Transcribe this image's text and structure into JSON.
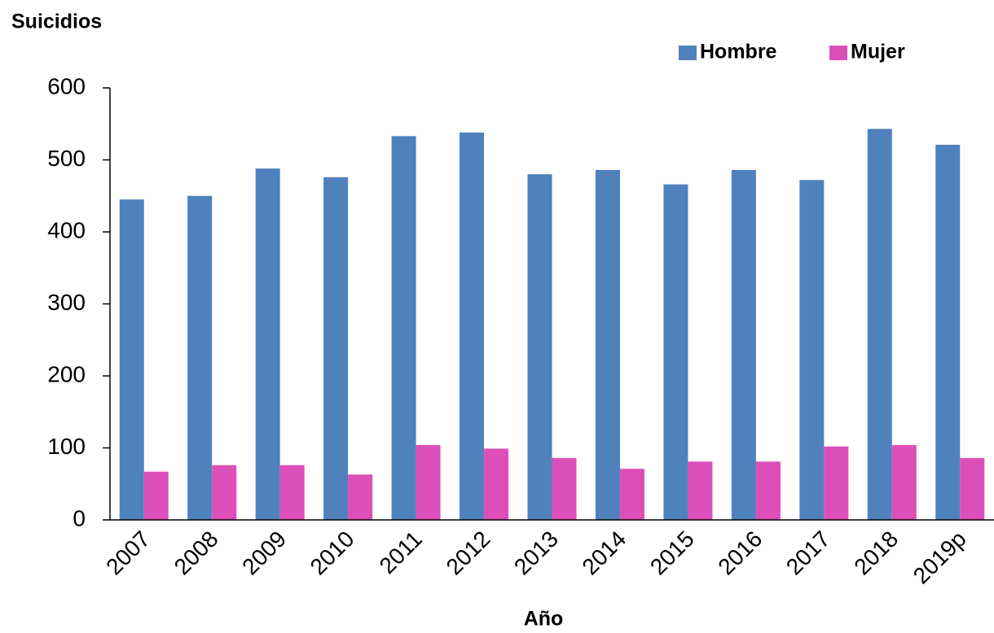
{
  "chart_data": {
    "type": "bar",
    "title": "Suicidios",
    "x_label": "Año",
    "categories": [
      "2007",
      "2008",
      "2009",
      "2010",
      "2011",
      "2012",
      "2013",
      "2014",
      "2015",
      "2016",
      "2017",
      "2018",
      "2019p"
    ],
    "series": [
      {
        "name": "Hombre",
        "color": "#4f81bd",
        "values": [
          445,
          450,
          488,
          476,
          533,
          538,
          480,
          486,
          466,
          486,
          472,
          543,
          521
        ]
      },
      {
        "name": "Mujer",
        "color": "#dd4fb8",
        "values": [
          67,
          76,
          76,
          63,
          104,
          99,
          86,
          71,
          81,
          81,
          102,
          104,
          86
        ]
      }
    ],
    "ylim": [
      0,
      600
    ],
    "yticks": [
      0,
      100,
      200,
      300,
      400,
      500,
      600
    ],
    "legend": "top-right"
  }
}
